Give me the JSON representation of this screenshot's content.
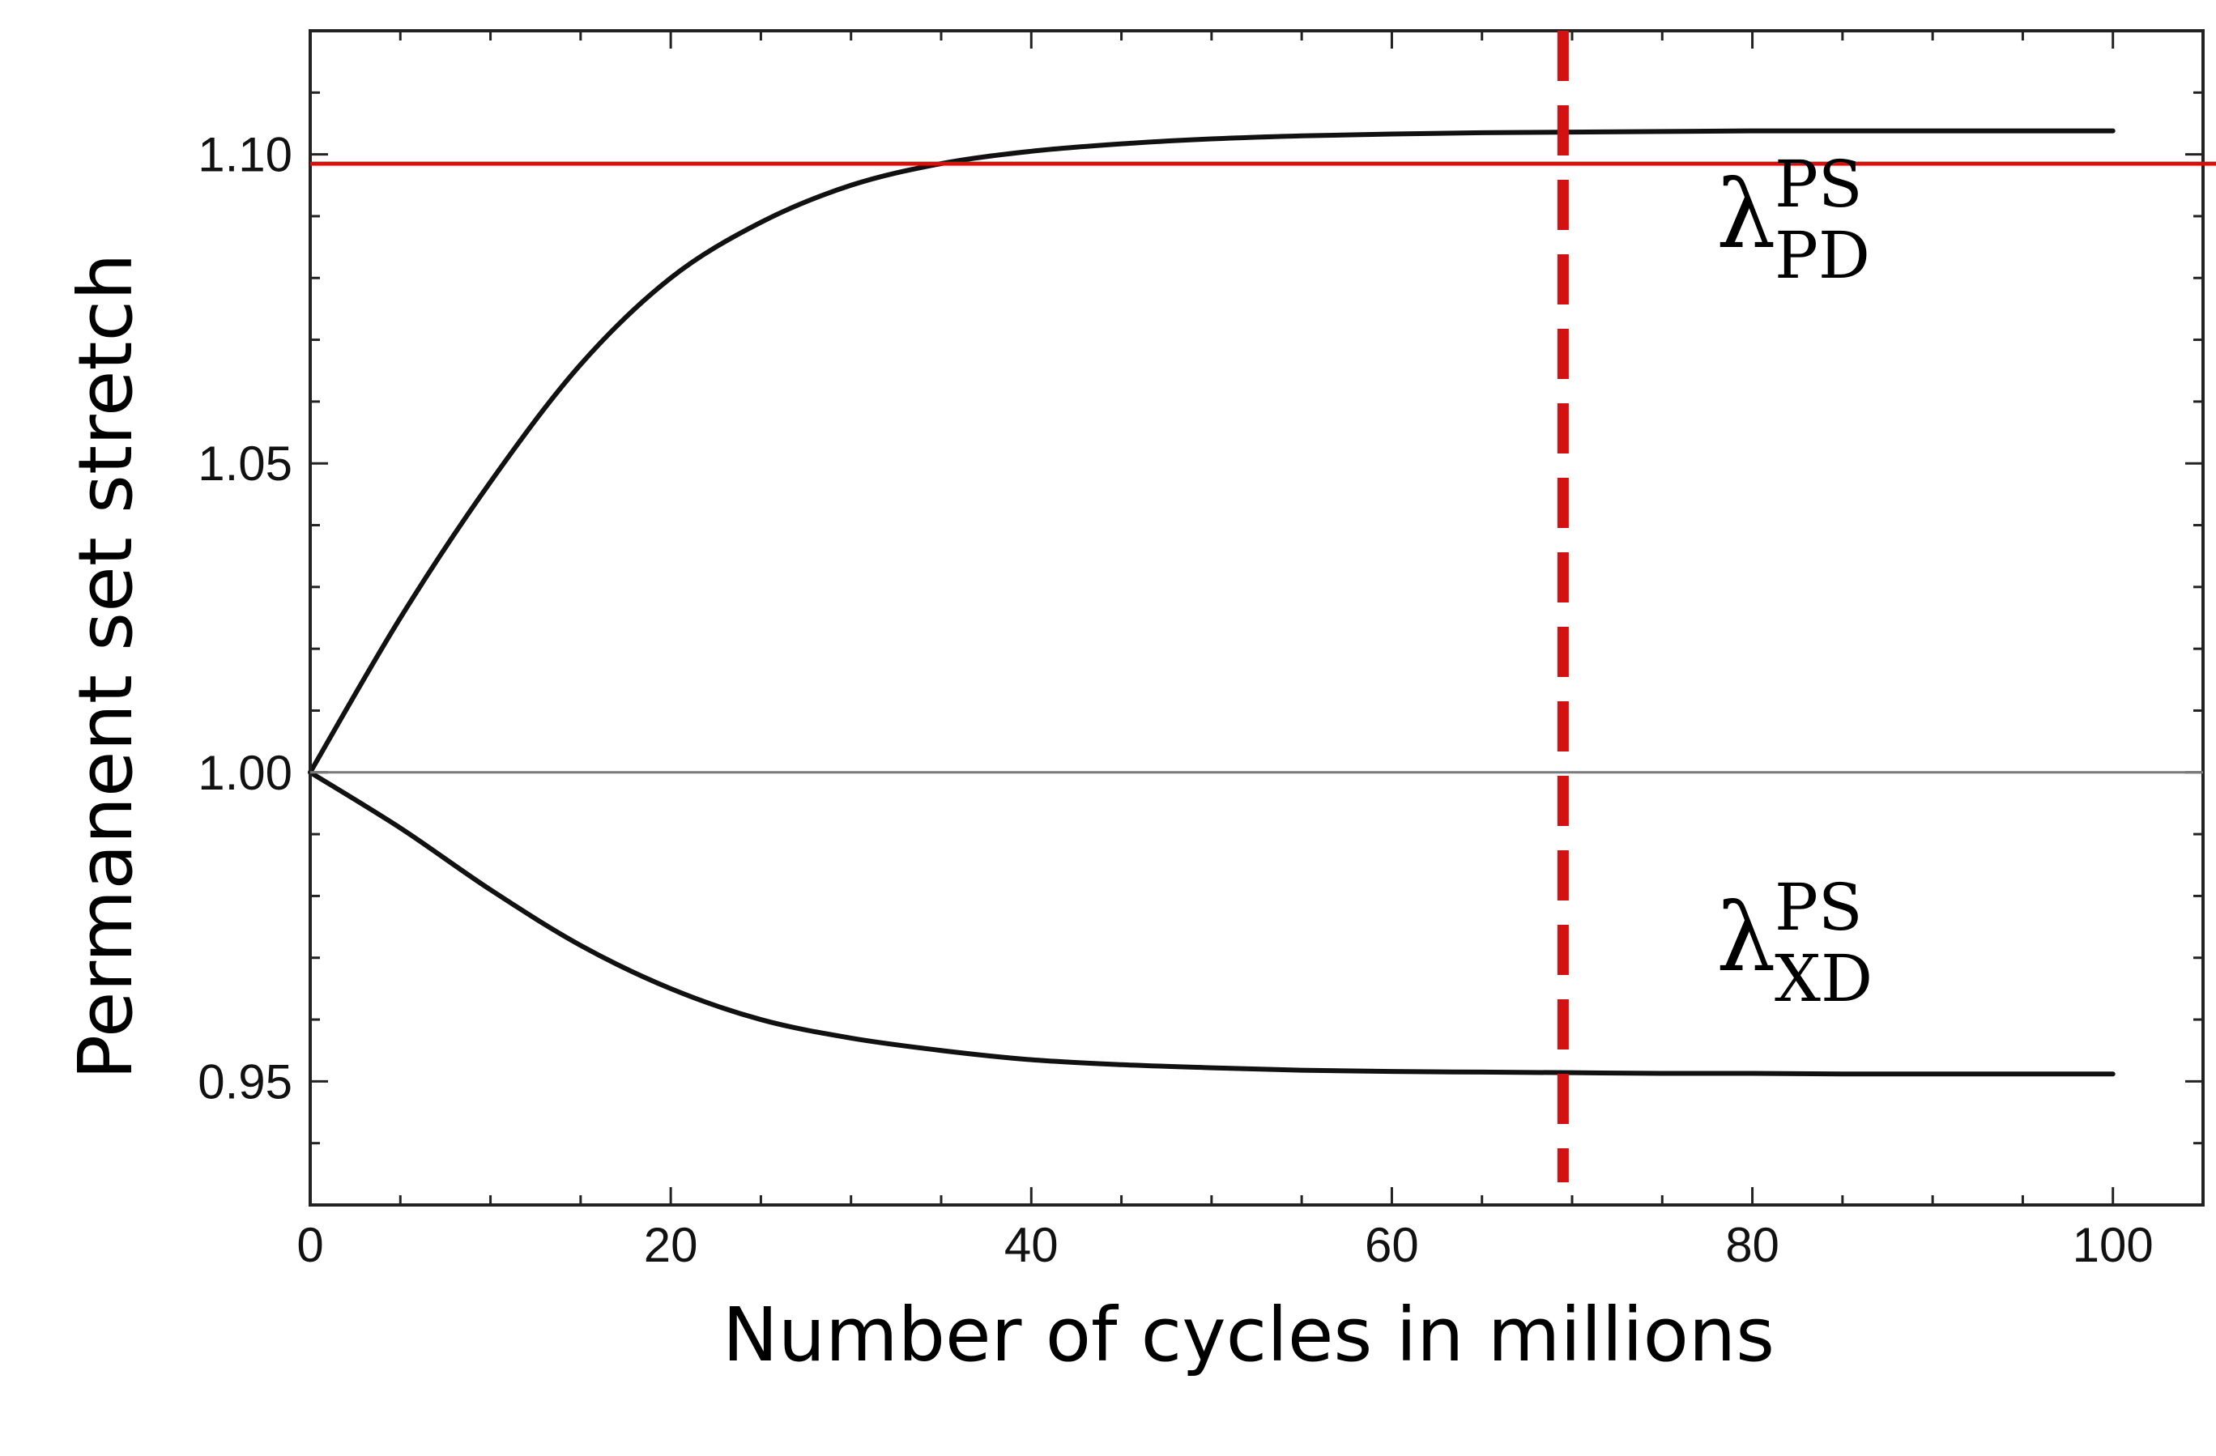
{
  "chart_data": {
    "type": "line",
    "title": "",
    "xlabel": "Number of cycles in millions",
    "ylabel": "Permanent set stretch",
    "xlim": [
      0,
      105
    ],
    "ylim": [
      0.93,
      1.12
    ],
    "x_ticks": [
      0,
      20,
      40,
      60,
      80,
      100
    ],
    "x_tick_labels": [
      "0",
      "20",
      "40",
      "60",
      "80",
      "100"
    ],
    "y_ticks": [
      0.95,
      1.0,
      1.05,
      1.1
    ],
    "y_tick_labels": [
      "0.95",
      "1.00",
      "1.05",
      "1.10"
    ],
    "grid": false,
    "series": [
      {
        "label_main": "λ",
        "label_sup": "PS",
        "label_sub": "PD",
        "color": "#111111",
        "x": [
          0,
          5,
          10,
          15,
          20,
          25,
          30,
          35,
          40,
          45,
          50,
          55,
          60,
          65,
          70,
          75,
          80,
          85,
          90,
          95,
          100
        ],
        "y": [
          1.0,
          1.025,
          1.047,
          1.066,
          1.08,
          1.089,
          1.095,
          1.0985,
          1.1005,
          1.1017,
          1.1025,
          1.103,
          1.1033,
          1.1035,
          1.1036,
          1.1037,
          1.1038,
          1.1038,
          1.1038,
          1.1038,
          1.1038
        ],
        "label_at": [
          78,
          1.085
        ]
      },
      {
        "label_main": "λ",
        "label_sup": "PS",
        "label_sub": "XD",
        "color": "#111111",
        "x": [
          0,
          5,
          10,
          15,
          20,
          25,
          30,
          35,
          40,
          45,
          50,
          55,
          60,
          65,
          70,
          75,
          80,
          85,
          90,
          95,
          100
        ],
        "y": [
          1.0,
          0.991,
          0.981,
          0.972,
          0.965,
          0.96,
          0.957,
          0.955,
          0.9535,
          0.9527,
          0.9522,
          0.9518,
          0.9516,
          0.9515,
          0.9514,
          0.9513,
          0.9513,
          0.9512,
          0.9512,
          0.9512,
          0.9512
        ],
        "label_at": [
          78,
          0.968
        ]
      }
    ],
    "reference_lines": [
      {
        "orientation": "horizontal",
        "value": 1.0,
        "color": "#7a7a7a",
        "style": "solid"
      },
      {
        "orientation": "horizontal",
        "value": 1.0985,
        "color": "#d41111",
        "style": "solid"
      },
      {
        "orientation": "vertical",
        "value": 69.5,
        "color": "#d41111",
        "style": "dashed"
      }
    ]
  }
}
